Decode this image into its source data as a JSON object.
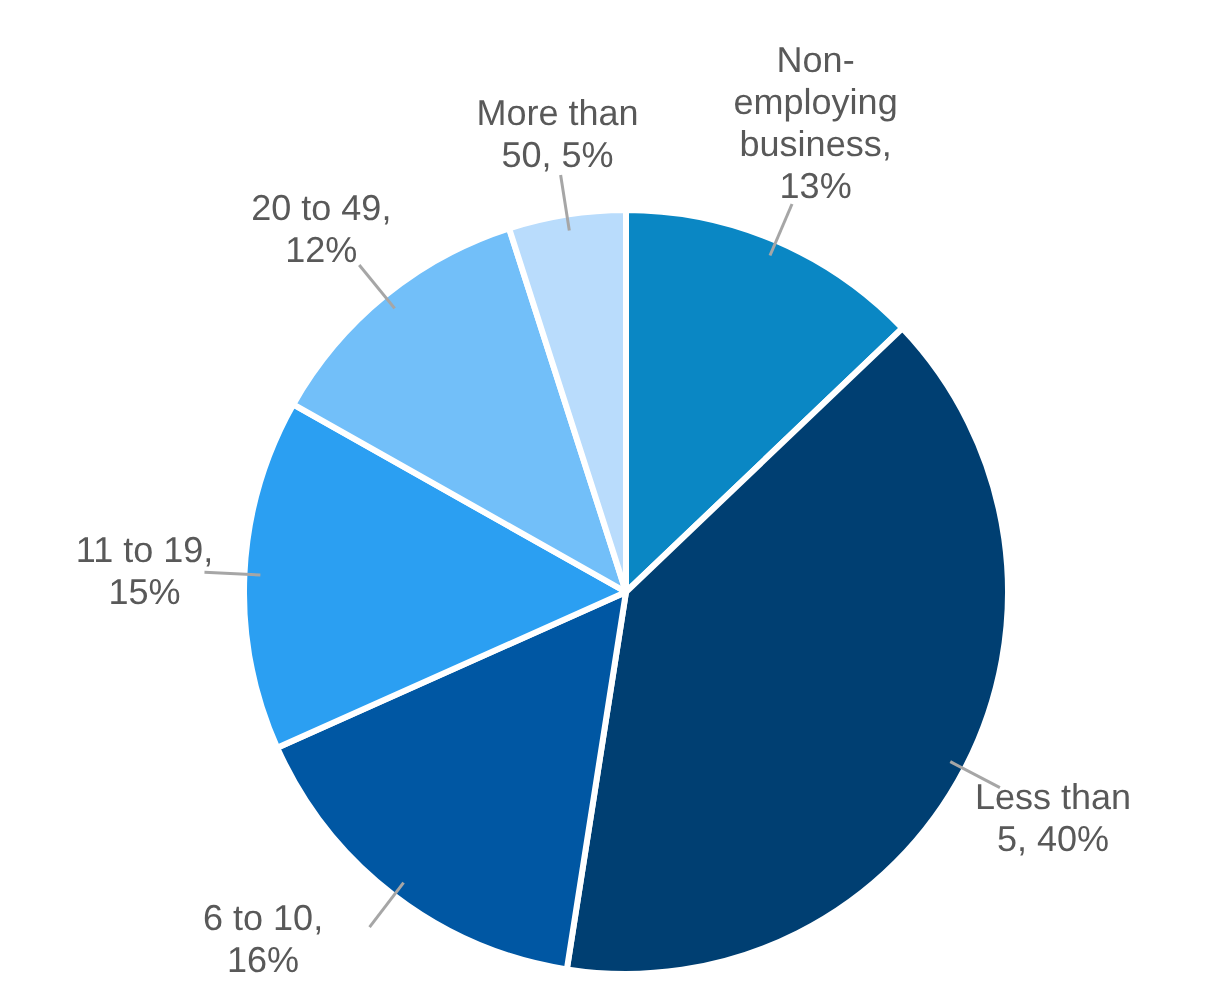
{
  "chart_data": {
    "type": "pie",
    "categories": [
      "Non-employing business",
      "Less than 5",
      "6 to 10",
      "11 to 19",
      "20 to 49",
      "More than 50"
    ],
    "values": [
      13,
      40,
      16,
      15,
      12,
      5
    ],
    "value_labels": [
      ", 13%",
      ", 40%",
      ", 16%",
      ", 15%",
      ", 12%",
      ", 5%"
    ],
    "colors": [
      "#0a87c4",
      "#003f72",
      "#0057a3",
      "#2b9ff2",
      "#72bff9",
      "#b9dcfc"
    ]
  }
}
